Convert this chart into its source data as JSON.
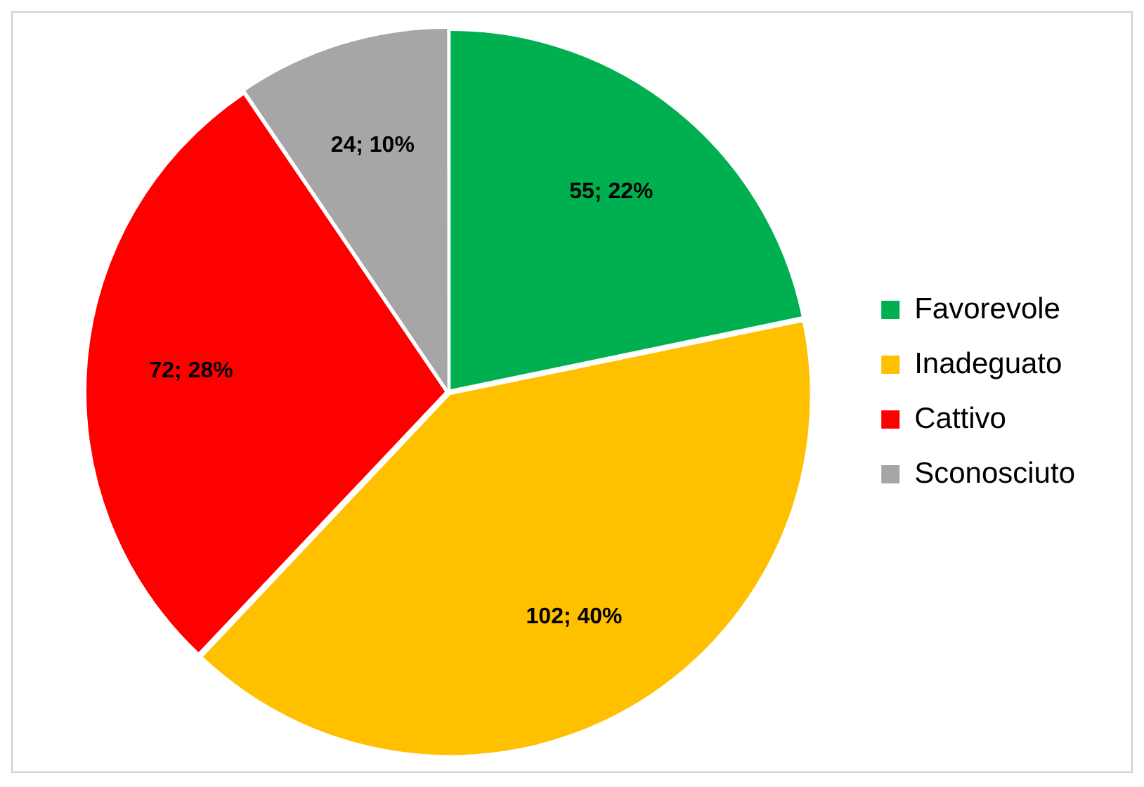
{
  "chart_data": {
    "type": "pie",
    "categories": [
      "Favorevole",
      "Inadeguato",
      "Cattivo",
      "Sconosciuto"
    ],
    "values": [
      55,
      102,
      72,
      24
    ],
    "colors": [
      "#00b050",
      "#ffc000",
      "#ff0000",
      "#a6a6a6"
    ],
    "value_labels": [
      "55; 22%",
      "102; 40%",
      "72; 28%",
      "24; 10%"
    ],
    "legend": "right"
  }
}
